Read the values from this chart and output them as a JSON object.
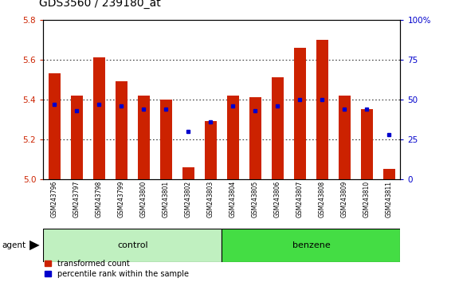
{
  "title": "GDS3560 / 239180_at",
  "samples": [
    "GSM243796",
    "GSM243797",
    "GSM243798",
    "GSM243799",
    "GSM243800",
    "GSM243801",
    "GSM243802",
    "GSM243803",
    "GSM243804",
    "GSM243805",
    "GSM243806",
    "GSM243807",
    "GSM243808",
    "GSM243809",
    "GSM243810",
    "GSM243811"
  ],
  "bar_values": [
    5.53,
    5.42,
    5.61,
    5.49,
    5.42,
    5.4,
    5.06,
    5.29,
    5.42,
    5.41,
    5.51,
    5.66,
    5.7,
    5.42,
    5.35,
    5.05
  ],
  "dot_values_pct": [
    47,
    43,
    47,
    46,
    44,
    44,
    30,
    36,
    46,
    43,
    46,
    50,
    50,
    44,
    44,
    28
  ],
  "ylim": [
    5.0,
    5.8
  ],
  "yticks": [
    5.0,
    5.2,
    5.4,
    5.6,
    5.8
  ],
  "right_yticks": [
    0,
    25,
    50,
    75,
    100
  ],
  "bar_color": "#cc2200",
  "dot_color": "#0000cc",
  "baseline": 5.0,
  "title_fontsize": 10,
  "tick_fontsize": 7.5,
  "legend_items": [
    "transformed count",
    "percentile rank within the sample"
  ],
  "legend_colors": [
    "#cc2200",
    "#0000cc"
  ],
  "agent_label": "agent",
  "sample_bg_color": "#c8c8c8",
  "control_color": "#c0f0c0",
  "benzene_color": "#44dd44",
  "plot_bg": "#ffffff",
  "n_control": 8,
  "n_benzene": 8
}
